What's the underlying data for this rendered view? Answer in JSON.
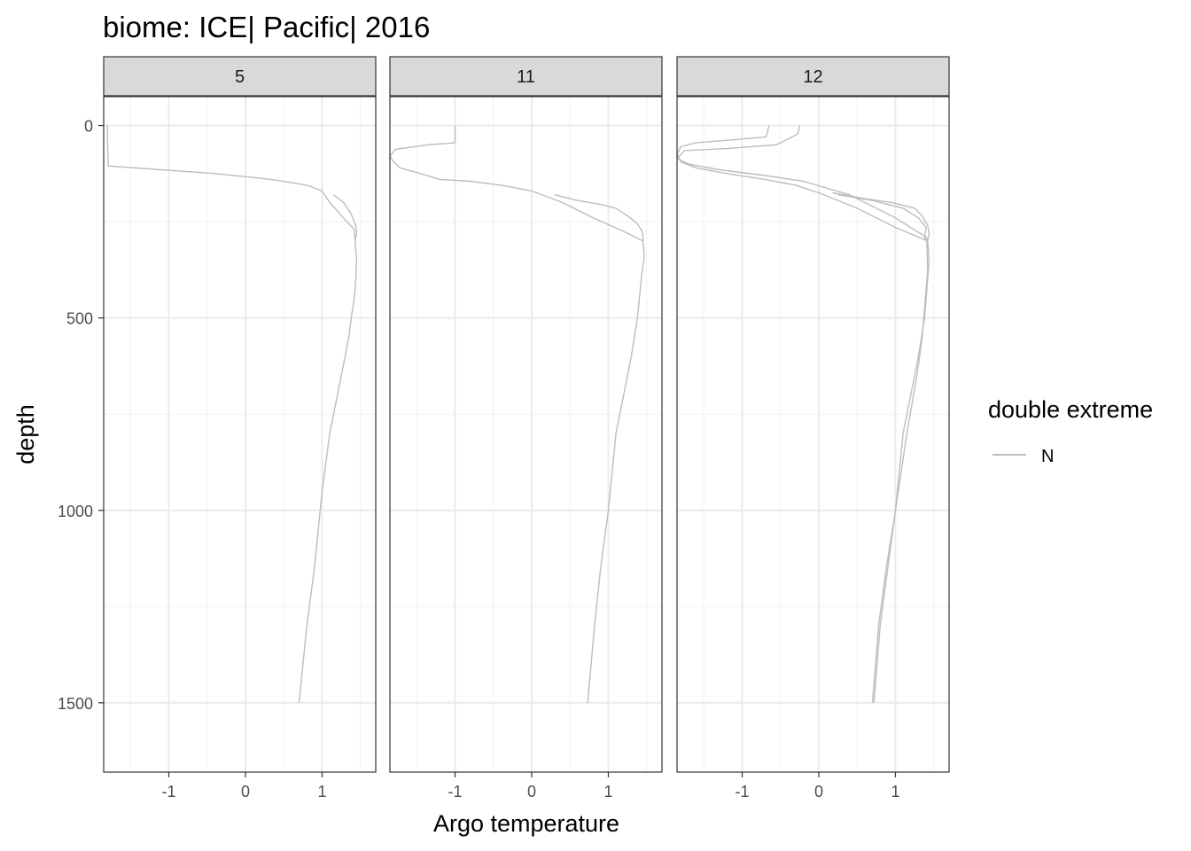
{
  "chart_data": {
    "type": "line",
    "title": "biome: ICE| Pacific| 2016",
    "xlabel": "Argo temperature",
    "ylabel": "depth",
    "xlim": [
      -1.85,
      1.7
    ],
    "ylim": [
      1680,
      -75
    ],
    "x_ticks": [
      -1,
      0,
      1
    ],
    "x_tick_labels": [
      "-1",
      "0",
      "1"
    ],
    "y_ticks": [
      0,
      500,
      1000,
      1500
    ],
    "y_tick_labels": [
      "0",
      "500",
      "1000",
      "1500"
    ],
    "y_reversed": true,
    "grid": true,
    "legend": {
      "title": "double extreme",
      "position": "right",
      "entries": [
        {
          "label": "N",
          "color": "#bdbdbd"
        }
      ]
    },
    "line_color": "#bdbdbd",
    "panels": [
      {
        "label": "5",
        "series": [
          {
            "points": [
              [
                -1.8,
                0
              ],
              [
                -1.8,
                40
              ],
              [
                -1.79,
                105
              ],
              [
                -1.1,
                115
              ],
              [
                -0.4,
                125
              ],
              [
                0.1,
                135
              ],
              [
                0.4,
                142
              ],
              [
                0.8,
                155
              ],
              [
                1.0,
                170
              ],
              [
                1.05,
                185
              ],
              [
                1.1,
                200
              ],
              [
                1.2,
                222
              ],
              [
                1.3,
                245
              ],
              [
                1.42,
                270
              ],
              [
                1.43,
                300
              ],
              [
                1.45,
                350
              ],
              [
                1.44,
                400
              ],
              [
                1.42,
                450
              ],
              [
                1.38,
                500
              ],
              [
                1.35,
                550
              ],
              [
                1.3,
                600
              ],
              [
                1.2,
                700
              ],
              [
                1.1,
                800
              ],
              [
                1.0,
                950
              ],
              [
                0.95,
                1050
              ],
              [
                0.9,
                1150
              ],
              [
                0.8,
                1300
              ],
              [
                0.7,
                1500
              ]
            ]
          },
          {
            "points": [
              [
                1.15,
                180
              ],
              [
                1.28,
                200
              ],
              [
                1.38,
                230
              ],
              [
                1.44,
                260
              ],
              [
                1.45,
                280
              ],
              [
                1.43,
                300
              ]
            ]
          }
        ]
      },
      {
        "label": "11",
        "series": [
          {
            "points": [
              [
                -1.0,
                0
              ],
              [
                -1.0,
                35
              ],
              [
                -1.0,
                45
              ],
              [
                -1.35,
                50
              ],
              [
                -1.78,
                62
              ],
              [
                -1.85,
                80
              ],
              [
                -1.8,
                95
              ],
              [
                -1.72,
                110
              ],
              [
                -1.45,
                125
              ],
              [
                -1.2,
                140
              ],
              [
                -0.8,
                145
              ],
              [
                -0.4,
                155
              ],
              [
                0.0,
                170
              ],
              [
                0.4,
                200
              ],
              [
                0.8,
                240
              ],
              [
                1.2,
                275
              ],
              [
                1.45,
                300
              ],
              [
                1.47,
                340
              ],
              [
                1.44,
                380
              ],
              [
                1.38,
                500
              ],
              [
                1.3,
                600
              ],
              [
                1.2,
                700
              ],
              [
                1.1,
                800
              ],
              [
                1.0,
                1000
              ],
              [
                0.9,
                1150
              ],
              [
                0.82,
                1300
              ],
              [
                0.73,
                1500
              ]
            ]
          },
          {
            "points": [
              [
                0.3,
                180
              ],
              [
                0.6,
                195
              ],
              [
                0.9,
                205
              ],
              [
                1.1,
                215
              ],
              [
                1.25,
                235
              ],
              [
                1.38,
                255
              ],
              [
                1.44,
                275
              ],
              [
                1.46,
                300
              ]
            ]
          }
        ]
      },
      {
        "label": "12",
        "series": [
          {
            "points": [
              [
                -0.65,
                0
              ],
              [
                -0.68,
                25
              ],
              [
                -0.7,
                30
              ],
              [
                -1.0,
                35
              ],
              [
                -1.6,
                45
              ],
              [
                -1.8,
                55
              ],
              [
                -1.85,
                75
              ],
              [
                -1.8,
                95
              ],
              [
                -1.6,
                110
              ],
              [
                -1.2,
                125
              ],
              [
                -0.7,
                140
              ],
              [
                -0.3,
                155
              ],
              [
                0.0,
                175
              ],
              [
                0.5,
                215
              ],
              [
                1.0,
                265
              ],
              [
                1.42,
                300
              ]
            ]
          },
          {
            "points": [
              [
                -0.25,
                0
              ],
              [
                -0.27,
                20
              ],
              [
                -0.3,
                25
              ],
              [
                -0.55,
                50
              ],
              [
                -1.2,
                60
              ],
              [
                -1.75,
                65
              ],
              [
                -1.85,
                85
              ],
              [
                -1.7,
                100
              ],
              [
                -1.3,
                115
              ],
              [
                -0.7,
                130
              ],
              [
                -0.2,
                145
              ],
              [
                0.4,
                180
              ],
              [
                1.0,
                240
              ],
              [
                1.4,
                290
              ],
              [
                1.42,
                300
              ]
            ]
          },
          {
            "points": [
              [
                0.18,
                175
              ],
              [
                0.6,
                190
              ],
              [
                0.95,
                200
              ],
              [
                1.25,
                215
              ],
              [
                1.35,
                235
              ],
              [
                1.42,
                260
              ],
              [
                1.44,
                280
              ],
              [
                1.42,
                300
              ]
            ]
          },
          {
            "points": [
              [
                0.25,
                180
              ],
              [
                0.7,
                195
              ],
              [
                1.1,
                215
              ],
              [
                1.3,
                240
              ],
              [
                1.4,
                265
              ],
              [
                1.38,
                290
              ],
              [
                1.41,
                300
              ]
            ]
          },
          {
            "points": [
              [
                1.42,
                300
              ],
              [
                1.44,
                350
              ],
              [
                1.42,
                400
              ],
              [
                1.38,
                500
              ],
              [
                1.3,
                600
              ],
              [
                1.2,
                700
              ],
              [
                1.1,
                800
              ],
              [
                1.0,
                1000
              ],
              [
                0.9,
                1150
              ],
              [
                0.8,
                1300
              ],
              [
                0.72,
                1500
              ]
            ]
          },
          {
            "points": [
              [
                1.41,
                300
              ],
              [
                1.42,
                380
              ],
              [
                1.39,
                450
              ],
              [
                1.35,
                550
              ],
              [
                1.28,
                650
              ],
              [
                1.15,
                800
              ],
              [
                1.0,
                1000
              ],
              [
                0.88,
                1150
              ],
              [
                0.78,
                1300
              ],
              [
                0.7,
                1500
              ]
            ]
          }
        ]
      }
    ]
  }
}
